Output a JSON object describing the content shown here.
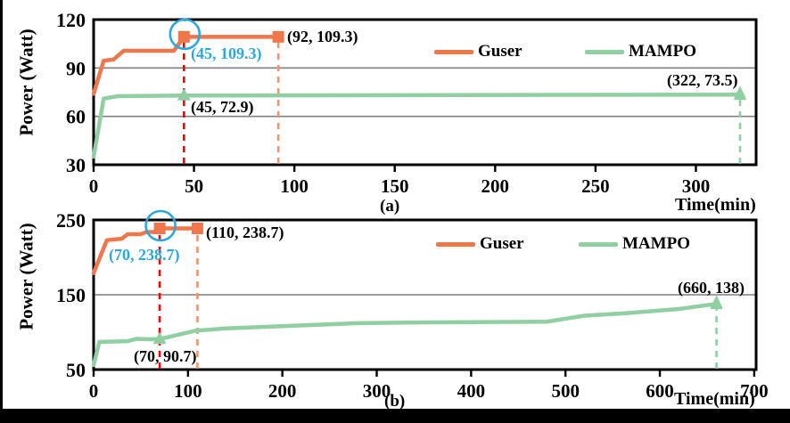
{
  "colors": {
    "guser": "#F0764C",
    "mampo": "#8FCFA2",
    "grid": "#7F7F7F",
    "axis": "#000000",
    "highlight": "#29A9E0",
    "guide_red": "#FF0000",
    "guide_orange": "#F5936C",
    "guide_green": "#8FCFA2"
  },
  "chart_data": [
    {
      "type": "line",
      "sub_label": "(a)",
      "ylabel": "Power (Watt)",
      "xlabel": "Time(min)",
      "xlim": [
        0,
        330
      ],
      "ylim": [
        30,
        120
      ],
      "x_ticks": [
        0,
        50,
        100,
        150,
        200,
        250,
        300
      ],
      "y_ticks": [
        30,
        60,
        90,
        120
      ],
      "gridlines_y": [
        60,
        90
      ],
      "legend_position": "inside-top-right",
      "series": [
        {
          "name": "Guser",
          "color_key": "guser",
          "points": [
            [
              0,
              74
            ],
            [
              5,
              94.5
            ],
            [
              10,
              95.3
            ],
            [
              15,
              100.7
            ],
            [
              40,
              100.7
            ],
            [
              45,
              109.3
            ],
            [
              92,
              109.3
            ]
          ],
          "markers": [
            {
              "x": 45,
              "y": 109.3,
              "shape": "square",
              "circled": true
            },
            {
              "x": 92,
              "y": 109.3,
              "shape": "square",
              "circled": false
            }
          ],
          "end_arrow": false
        },
        {
          "name": "MAMPO",
          "color_key": "mampo",
          "points": [
            [
              0,
              35
            ],
            [
              5,
              71
            ],
            [
              12,
              72.5
            ],
            [
              45,
              72.9
            ],
            [
              322,
              73.5
            ]
          ],
          "markers": [
            {
              "x": 45,
              "y": 72.9,
              "shape": "triangle",
              "circled": false
            }
          ],
          "end_arrow": true
        }
      ],
      "guides": [
        {
          "x": 45,
          "y_top": 109.3,
          "color_key": "guide_red",
          "arrow": false
        },
        {
          "x": 92,
          "y_top": 109.3,
          "color_key": "guide_orange",
          "arrow": false
        },
        {
          "x": 322,
          "y_top": 73.5,
          "color_key": "guide_green",
          "arrow": true
        }
      ],
      "annotations": [
        {
          "text": "(45, 109.3)",
          "highlight": true
        },
        {
          "text": "(92, 109.3)",
          "highlight": false
        },
        {
          "text": "(45, 72.9)",
          "highlight": false
        },
        {
          "text": "(322, 73.5)",
          "highlight": false
        }
      ]
    },
    {
      "type": "line",
      "sub_label": "(b)",
      "ylabel": "Power (Watt)",
      "xlabel": "Time(min)",
      "xlim": [
        0,
        702
      ],
      "ylim": [
        50,
        250
      ],
      "x_ticks": [
        0,
        100,
        200,
        300,
        400,
        500,
        600,
        700
      ],
      "y_ticks": [
        50,
        150,
        250
      ],
      "gridlines_y": [
        150
      ],
      "legend_position": "inside-top-right",
      "series": [
        {
          "name": "Guser",
          "color_key": "guser",
          "points": [
            [
              0,
              179
            ],
            [
              14,
              223
            ],
            [
              30,
              225
            ],
            [
              36,
              231
            ],
            [
              50,
              231
            ],
            [
              56,
              234
            ],
            [
              64,
              234
            ],
            [
              70,
              238.7
            ],
            [
              110,
              238.7
            ]
          ],
          "markers": [
            {
              "x": 70,
              "y": 238.7,
              "shape": "square",
              "circled": true
            },
            {
              "x": 110,
              "y": 238.7,
              "shape": "square",
              "circled": false
            }
          ],
          "end_arrow": false
        },
        {
          "name": "MAMPO",
          "color_key": "mampo",
          "points": [
            [
              0,
              56
            ],
            [
              6,
              87
            ],
            [
              36,
              88
            ],
            [
              45,
              91
            ],
            [
              62,
              90.5
            ],
            [
              70,
              90.7
            ],
            [
              88,
              96
            ],
            [
              108,
              102
            ],
            [
              140,
              105
            ],
            [
              200,
              108
            ],
            [
              280,
              112
            ],
            [
              340,
              113
            ],
            [
              480,
              114
            ],
            [
              520,
              122
            ],
            [
              560,
              125
            ],
            [
              620,
              131
            ],
            [
              655,
              137
            ],
            [
              660,
              138
            ]
          ],
          "markers": [
            {
              "x": 70,
              "y": 90.7,
              "shape": "triangle",
              "circled": false
            }
          ],
          "end_arrow": true
        }
      ],
      "guides": [
        {
          "x": 70,
          "y_top": 238.7,
          "color_key": "guide_red",
          "arrow": false
        },
        {
          "x": 110,
          "y_top": 238.7,
          "color_key": "guide_orange",
          "arrow": false
        },
        {
          "x": 660,
          "y_top": 138,
          "color_key": "guide_green",
          "arrow": true
        }
      ],
      "annotations": [
        {
          "text": "(70, 238.7)",
          "highlight": true
        },
        {
          "text": "(110, 238.7)",
          "highlight": false
        },
        {
          "text": "(70, 90.7)",
          "highlight": false
        },
        {
          "text": "(660, 138)",
          "highlight": false
        }
      ]
    }
  ]
}
